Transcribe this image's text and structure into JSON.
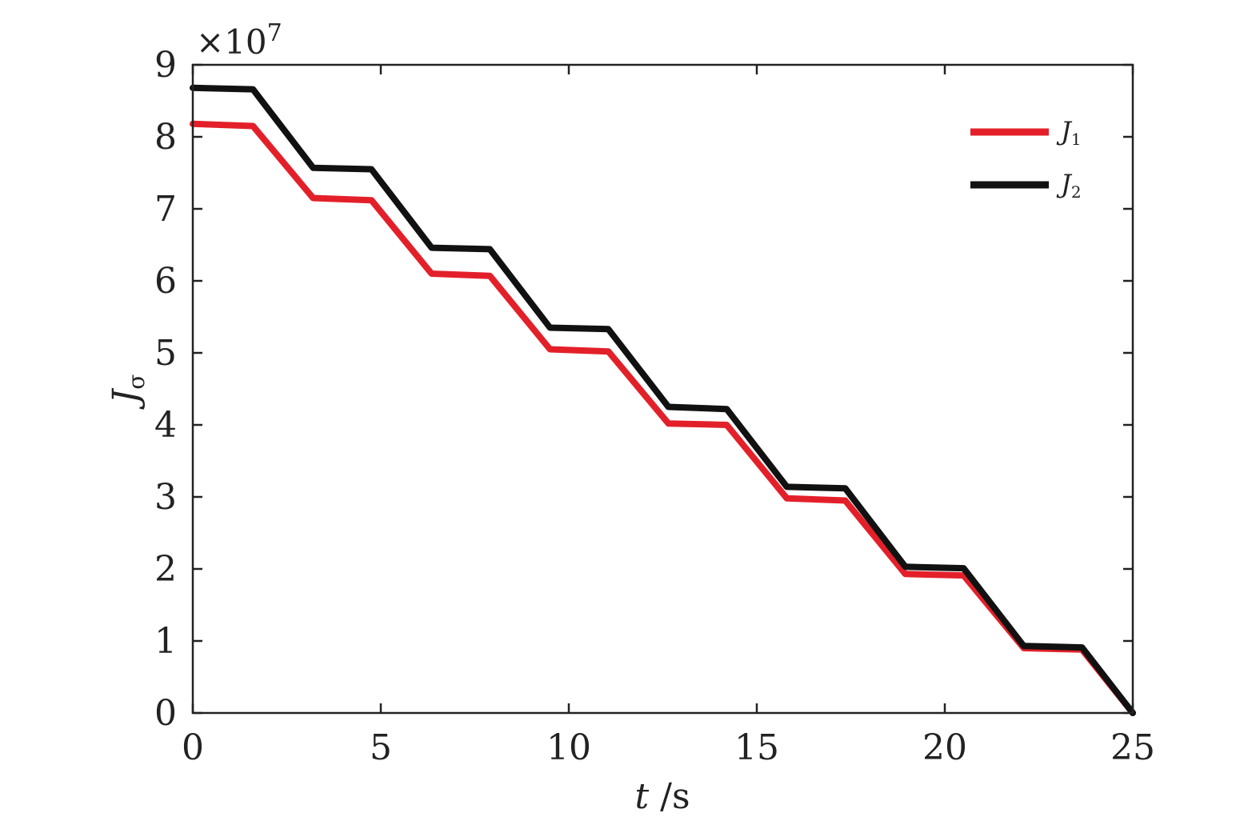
{
  "chart_data": {
    "type": "line",
    "exponent_label": {
      "base": "×10",
      "power": "7"
    },
    "xlabel": {
      "var": "t",
      "unit": " /s"
    },
    "ylabel": {
      "var": "J",
      "sub": "σ"
    },
    "xlim": [
      0,
      25
    ],
    "ylim": [
      0,
      9
    ],
    "xticks": [
      0,
      5,
      10,
      15,
      20,
      25
    ],
    "yticks": [
      0,
      1,
      2,
      3,
      4,
      5,
      6,
      7,
      8,
      9
    ],
    "grid": false,
    "legend_position": "top-right",
    "series": [
      {
        "name": "J",
        "sub": "1",
        "color": "#e3202a",
        "x": [
          0,
          1.6,
          3.2,
          4.75,
          6.35,
          7.9,
          9.5,
          11.05,
          12.65,
          14.2,
          15.8,
          17.35,
          18.95,
          20.5,
          22.1,
          23.65,
          25
        ],
        "y": [
          8.18,
          8.15,
          7.15,
          7.12,
          6.1,
          6.07,
          5.05,
          5.02,
          4.02,
          4.0,
          2.98,
          2.95,
          1.93,
          1.91,
          0.9,
          0.88,
          0
        ]
      },
      {
        "name": "J",
        "sub": "2",
        "color": "#111111",
        "x": [
          0,
          1.6,
          3.2,
          4.75,
          6.35,
          7.9,
          9.5,
          11.05,
          12.65,
          14.2,
          15.8,
          17.35,
          18.95,
          20.5,
          22.1,
          23.65,
          25
        ],
        "y": [
          8.68,
          8.66,
          7.57,
          7.55,
          6.46,
          6.44,
          5.35,
          5.33,
          4.25,
          4.22,
          3.14,
          3.12,
          2.03,
          2.01,
          0.93,
          0.91,
          0
        ]
      }
    ]
  }
}
